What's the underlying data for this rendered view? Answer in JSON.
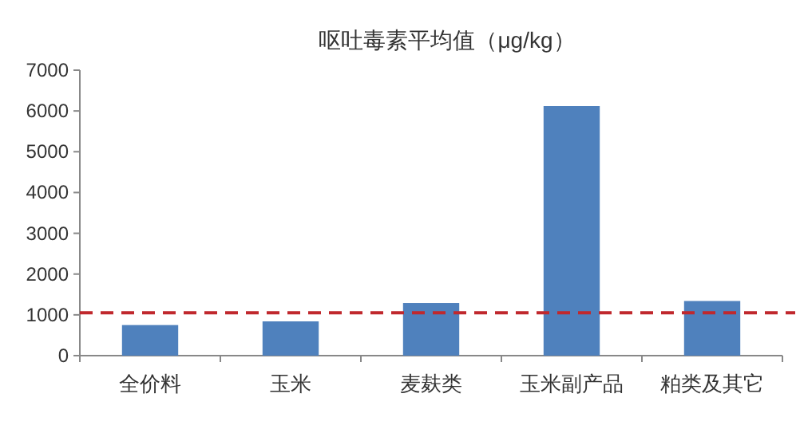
{
  "chart_data": {
    "type": "bar",
    "title": "呕吐毒素平均值（μg/kg）",
    "categories": [
      "全价料",
      "玉米",
      "麦麸类",
      "玉米副产品",
      "粕类及其它"
    ],
    "values": [
      750,
      840,
      1290,
      6120,
      1340
    ],
    "color": "#4f81bd",
    "ylim": [
      0,
      7000
    ],
    "yticks": [
      0,
      1000,
      2000,
      3000,
      4000,
      5000,
      6000,
      7000
    ],
    "grid": false,
    "ref_lines": [
      {
        "axis": "y",
        "value": 1050,
        "color": "#c0282d",
        "line_style": "dashed"
      }
    ]
  }
}
